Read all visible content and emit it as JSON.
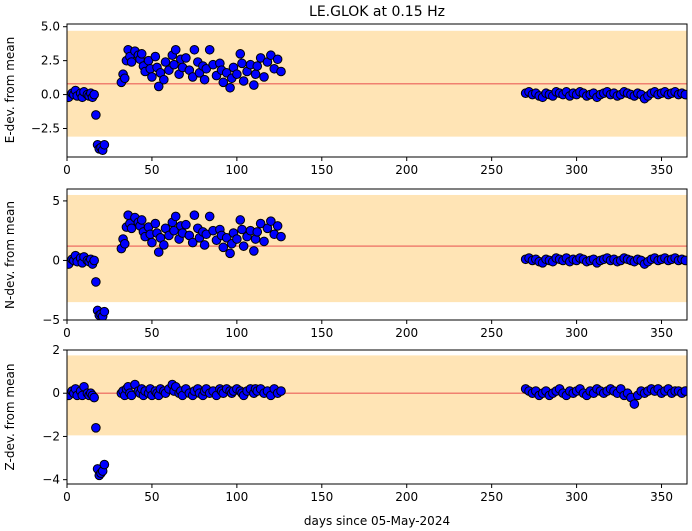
{
  "figure": {
    "title": "LE.GLOK at 0.15 Hz",
    "xlabel": "days since 05-May-2024",
    "colors": {
      "band": "#ffe4b5",
      "mean_line": "#f08070",
      "marker_fill": "#0000ff",
      "marker_edge": "#000000"
    }
  },
  "chart_data": [
    {
      "type": "scatter",
      "title": "LE.GLOK at 0.15 Hz",
      "xlabel": "",
      "ylabel": "E-dev. from mean",
      "xlim": [
        0,
        365
      ],
      "ylim": [
        -4.6,
        5.2
      ],
      "xticks": [
        0,
        50,
        100,
        150,
        200,
        250,
        300,
        350
      ],
      "yticks": [
        -2.5,
        0.0,
        2.5,
        5.0
      ],
      "ytick_labels": [
        "−2.5",
        "0.0",
        "2.5",
        "5.0"
      ],
      "band": [
        -3.1,
        4.7
      ],
      "mean_line": 0.8,
      "x": [
        1,
        3,
        4,
        5,
        6,
        8,
        9,
        10,
        12,
        13,
        14,
        15,
        16,
        17,
        18,
        19,
        20,
        21,
        22,
        32,
        33,
        34,
        35,
        36,
        37,
        38,
        40,
        42,
        43,
        44,
        45,
        46,
        48,
        49,
        50,
        52,
        53,
        54,
        55,
        57,
        58,
        60,
        62,
        63,
        64,
        66,
        67,
        68,
        70,
        72,
        74,
        75,
        77,
        78,
        80,
        81,
        82,
        84,
        86,
        88,
        90,
        91,
        92,
        94,
        96,
        97,
        98,
        100,
        102,
        103,
        104,
        106,
        108,
        110,
        111,
        112,
        114,
        116,
        118,
        120,
        122,
        124,
        126,
        270,
        272,
        274,
        276,
        278,
        280,
        282,
        284,
        286,
        288,
        290,
        292,
        294,
        296,
        298,
        300,
        302,
        304,
        306,
        308,
        310,
        312,
        314,
        316,
        318,
        320,
        322,
        324,
        326,
        328,
        330,
        332,
        334,
        336,
        338,
        340,
        342,
        344,
        346,
        348,
        350,
        352,
        354,
        356,
        358,
        360,
        362,
        364
      ],
      "y": [
        -0.2,
        0.1,
        0.0,
        0.3,
        -0.1,
        0.1,
        -0.2,
        0.2,
        0.0,
        -0.1,
        0.1,
        -0.2,
        0.0,
        -1.5,
        -3.7,
        -4.0,
        -3.9,
        -4.1,
        -3.7,
        0.9,
        1.5,
        1.2,
        2.5,
        3.3,
        2.8,
        2.4,
        3.2,
        2.9,
        2.6,
        3.0,
        2.1,
        1.7,
        2.5,
        1.9,
        1.3,
        2.8,
        2.0,
        0.6,
        1.6,
        1.1,
        2.4,
        1.8,
        2.9,
        2.2,
        3.3,
        1.5,
        2.6,
        2.0,
        2.7,
        1.8,
        1.3,
        3.3,
        2.4,
        1.6,
        2.1,
        1.1,
        1.9,
        3.3,
        2.2,
        1.4,
        2.3,
        1.8,
        0.9,
        1.6,
        0.5,
        1.2,
        2.0,
        1.5,
        3.0,
        2.3,
        1.0,
        1.7,
        2.2,
        0.7,
        1.5,
        2.1,
        2.7,
        1.3,
        2.4,
        2.9,
        1.9,
        2.6,
        1.7,
        0.1,
        0.2,
        0.0,
        0.1,
        -0.1,
        -0.2,
        0.1,
        0.0,
        -0.1,
        0.2,
        0.1,
        0.0,
        0.2,
        -0.1,
        0.1,
        0.0,
        0.2,
        0.1,
        -0.1,
        0.0,
        0.1,
        -0.2,
        0.0,
        0.1,
        0.2,
        0.0,
        0.1,
        -0.1,
        0.0,
        0.2,
        0.1,
        0.0,
        -0.1,
        0.1,
        0.0,
        -0.3,
        -0.1,
        0.1,
        0.2,
        0.0,
        0.1,
        0.2,
        0.0,
        0.1,
        0.2,
        0.0,
        0.1,
        0.0
      ]
    },
    {
      "type": "scatter",
      "title": "",
      "xlabel": "",
      "ylabel": "N-dev. from mean",
      "xlim": [
        0,
        365
      ],
      "ylim": [
        -5.0,
        6.0
      ],
      "xticks": [
        0,
        50,
        100,
        150,
        200,
        250,
        300,
        350
      ],
      "yticks": [
        -5,
        0,
        5
      ],
      "ytick_labels": [
        "−5",
        "0",
        "5"
      ],
      "band": [
        -3.5,
        5.5
      ],
      "mean_line": 1.2,
      "x": [
        1,
        3,
        4,
        5,
        6,
        8,
        9,
        10,
        12,
        13,
        14,
        15,
        16,
        17,
        18,
        19,
        20,
        21,
        22,
        32,
        33,
        34,
        35,
        36,
        37,
        38,
        40,
        42,
        43,
        44,
        45,
        46,
        48,
        49,
        50,
        52,
        53,
        54,
        55,
        57,
        58,
        60,
        62,
        63,
        64,
        66,
        67,
        68,
        70,
        72,
        74,
        75,
        77,
        78,
        80,
        81,
        82,
        84,
        86,
        88,
        90,
        91,
        92,
        94,
        96,
        97,
        98,
        100,
        102,
        103,
        104,
        106,
        108,
        110,
        111,
        112,
        114,
        116,
        118,
        120,
        122,
        124,
        126,
        270,
        272,
        274,
        276,
        278,
        280,
        282,
        284,
        286,
        288,
        290,
        292,
        294,
        296,
        298,
        300,
        302,
        304,
        306,
        308,
        310,
        312,
        314,
        316,
        318,
        320,
        322,
        324,
        326,
        328,
        330,
        332,
        334,
        336,
        338,
        340,
        342,
        344,
        346,
        348,
        350,
        352,
        354,
        356,
        358,
        360,
        362,
        364
      ],
      "y": [
        -0.3,
        0.1,
        0.0,
        0.4,
        -0.1,
        0.2,
        -0.2,
        0.3,
        0.0,
        -0.1,
        0.1,
        -0.3,
        0.0,
        -1.8,
        -4.2,
        -4.6,
        -4.5,
        -4.7,
        -4.3,
        1.0,
        1.8,
        1.4,
        2.8,
        3.8,
        3.1,
        2.7,
        3.6,
        3.2,
        2.9,
        3.4,
        2.4,
        2.0,
        2.8,
        2.2,
        1.5,
        3.1,
        2.3,
        0.7,
        1.9,
        1.3,
        2.7,
        2.1,
        3.2,
        2.5,
        3.7,
        1.8,
        2.9,
        2.3,
        3.0,
        2.1,
        1.5,
        3.8,
        2.7,
        1.9,
        2.4,
        1.3,
        2.2,
        3.7,
        2.5,
        1.7,
        2.6,
        2.1,
        1.1,
        1.9,
        0.6,
        1.4,
        2.3,
        1.8,
        3.4,
        2.6,
        1.2,
        2.0,
        2.5,
        0.8,
        1.8,
        2.4,
        3.1,
        1.6,
        2.7,
        3.3,
        2.2,
        2.9,
        2.0,
        0.1,
        0.2,
        0.0,
        0.1,
        -0.1,
        -0.2,
        0.1,
        0.0,
        -0.1,
        0.2,
        0.1,
        0.0,
        0.2,
        -0.1,
        0.1,
        0.0,
        0.2,
        0.1,
        -0.1,
        0.0,
        0.1,
        -0.2,
        0.0,
        0.1,
        0.2,
        0.0,
        0.1,
        -0.1,
        0.0,
        0.2,
        0.1,
        0.0,
        -0.1,
        0.1,
        0.0,
        -0.3,
        -0.1,
        0.1,
        0.2,
        0.0,
        0.1,
        0.2,
        0.0,
        0.1,
        0.2,
        0.0,
        0.1,
        0.0
      ]
    },
    {
      "type": "scatter",
      "title": "",
      "xlabel": "days since 05-May-2024",
      "ylabel": "Z-dev. from mean",
      "xlim": [
        0,
        365
      ],
      "ylim": [
        -4.2,
        2.0
      ],
      "xticks": [
        0,
        50,
        100,
        150,
        200,
        250,
        300,
        350
      ],
      "yticks": [
        -4,
        -2,
        0,
        2
      ],
      "ytick_labels": [
        "−4",
        "−2",
        "0",
        "2"
      ],
      "band": [
        -1.95,
        1.75
      ],
      "mean_line": 0.0,
      "x": [
        1,
        3,
        4,
        5,
        6,
        8,
        9,
        10,
        12,
        13,
        14,
        15,
        16,
        17,
        18,
        19,
        20,
        21,
        22,
        32,
        33,
        34,
        35,
        36,
        37,
        38,
        40,
        42,
        43,
        44,
        45,
        46,
        48,
        49,
        50,
        52,
        53,
        54,
        55,
        57,
        58,
        60,
        62,
        63,
        64,
        66,
        67,
        68,
        70,
        72,
        74,
        75,
        77,
        78,
        80,
        81,
        82,
        84,
        86,
        88,
        90,
        91,
        92,
        94,
        96,
        97,
        98,
        100,
        102,
        103,
        104,
        106,
        108,
        110,
        111,
        112,
        114,
        116,
        118,
        120,
        122,
        124,
        126,
        270,
        272,
        274,
        276,
        278,
        280,
        282,
        284,
        286,
        288,
        290,
        292,
        294,
        296,
        298,
        300,
        302,
        304,
        306,
        308,
        310,
        312,
        314,
        316,
        318,
        320,
        322,
        324,
        326,
        328,
        330,
        332,
        334,
        336,
        338,
        340,
        342,
        344,
        346,
        348,
        350,
        352,
        354,
        356,
        358,
        360,
        362,
        364
      ],
      "y": [
        -0.1,
        0.1,
        0.0,
        0.2,
        -0.1,
        0.1,
        -0.1,
        0.3,
        0.0,
        -0.1,
        0.0,
        -0.1,
        -0.2,
        -1.6,
        -3.5,
        -3.8,
        -3.7,
        -3.6,
        -3.3,
        0.0,
        0.1,
        -0.1,
        0.2,
        0.3,
        0.0,
        -0.1,
        0.4,
        0.1,
        0.0,
        0.2,
        -0.1,
        0.1,
        0.0,
        0.2,
        -0.1,
        0.1,
        0.0,
        -0.1,
        0.2,
        0.1,
        0.0,
        0.2,
        0.4,
        0.1,
        0.3,
        0.0,
        0.1,
        -0.1,
        0.2,
        0.0,
        -0.1,
        0.1,
        0.2,
        0.0,
        -0.1,
        0.1,
        0.2,
        0.0,
        0.1,
        -0.1,
        0.2,
        0.1,
        0.0,
        0.2,
        0.1,
        0.0,
        0.1,
        0.2,
        0.1,
        0.0,
        -0.1,
        0.1,
        0.2,
        0.0,
        0.2,
        0.1,
        0.2,
        0.0,
        0.1,
        -0.1,
        0.2,
        0.0,
        0.1,
        0.2,
        0.1,
        0.0,
        0.1,
        -0.1,
        0.0,
        0.1,
        -0.1,
        0.0,
        0.1,
        0.2,
        0.0,
        -0.1,
        0.1,
        0.0,
        0.1,
        0.2,
        0.0,
        -0.1,
        0.1,
        0.0,
        0.2,
        0.1,
        0.0,
        0.1,
        0.2,
        0.1,
        0.0,
        0.2,
        -0.1,
        0.0,
        -0.2,
        -0.5,
        -0.1,
        0.1,
        0.0,
        0.1,
        0.2,
        0.1,
        0.2,
        0.0,
        0.1,
        0.2,
        0.0,
        0.1,
        0.1,
        0.0,
        0.1
      ]
    }
  ]
}
